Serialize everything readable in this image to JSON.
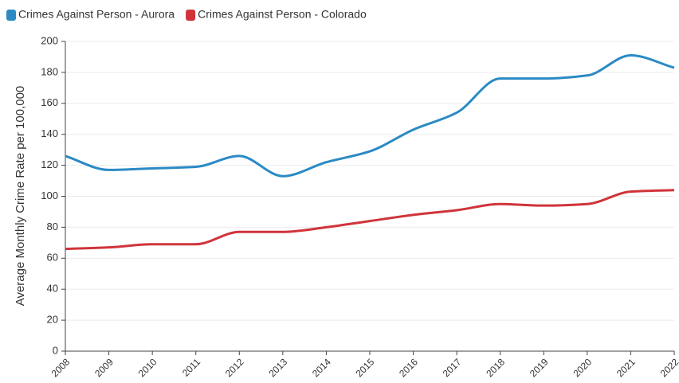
{
  "chart_data": {
    "type": "line",
    "y_label": "Average Monthly Crime Rate per 100,000",
    "x": [
      2008,
      2009,
      2010,
      2011,
      2012,
      2013,
      2014,
      2015,
      2016,
      2017,
      2018,
      2019,
      2020,
      2021,
      2022
    ],
    "xlim": [
      2008,
      2022
    ],
    "xticks": [
      2008,
      2009,
      2010,
      2011,
      2012,
      2013,
      2014,
      2015,
      2016,
      2017,
      2018,
      2019,
      2020,
      2021,
      2022
    ],
    "ylim": [
      0,
      200
    ],
    "yticks": [
      0,
      20,
      40,
      60,
      80,
      100,
      120,
      140,
      160,
      180,
      200
    ],
    "grid": true,
    "legend": "top-left",
    "series": [
      {
        "name": "Crimes Against Person - Aurora",
        "color": "#2b8ac4",
        "values": [
          126,
          117,
          118,
          119,
          126,
          113,
          122,
          129,
          143,
          154,
          176,
          176,
          178,
          191,
          183
        ]
      },
      {
        "name": "Crimes Against Person - Colorado",
        "color": "#d0343a",
        "values": [
          66,
          67,
          69,
          69,
          77,
          77,
          80,
          84,
          88,
          91,
          95,
          94,
          95,
          103,
          104
        ]
      }
    ]
  }
}
